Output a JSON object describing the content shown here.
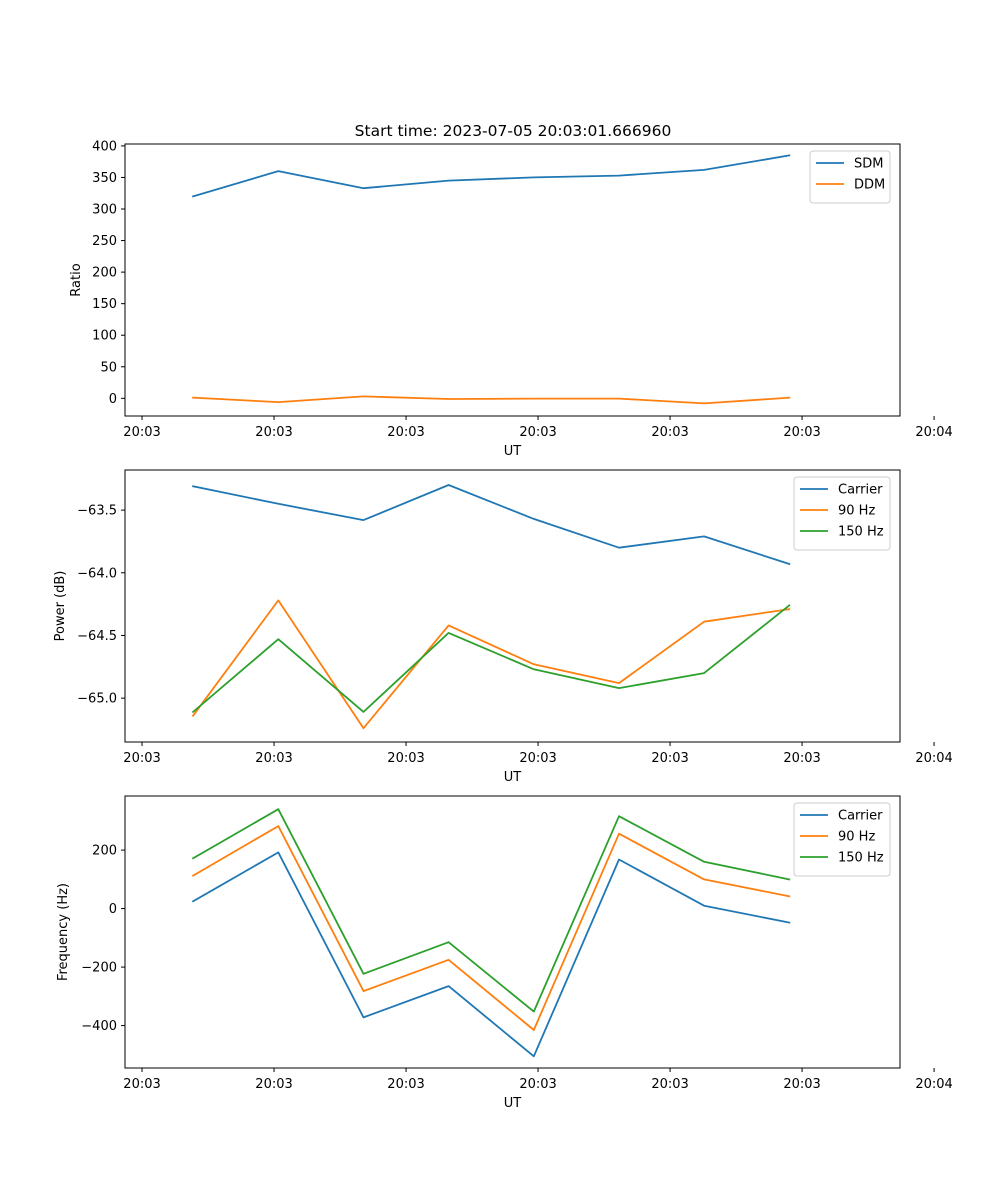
{
  "figure": {
    "title": "Start time: 2023-07-05 20:03:01.666960"
  },
  "colors": {
    "blue": "#1f77b4",
    "orange": "#ff7f0e",
    "green": "#2ca02c",
    "frame": "#000000"
  },
  "chart_data": [
    {
      "type": "line",
      "title": "Start time: 2023-07-05 20:03:01.666960",
      "xlabel": "UT",
      "ylabel": "Ratio",
      "x": [
        1,
        2,
        3,
        4,
        5,
        6,
        7,
        8
      ],
      "xlim": [
        0.2,
        9.3
      ],
      "x_ticks": [
        0.4,
        1.95,
        3.5,
        5.05,
        6.6,
        8.15,
        9.7
      ],
      "x_tick_labels": [
        "20:03",
        "20:03",
        "20:03",
        "20:03",
        "20:03",
        "20:03",
        "20:04"
      ],
      "ylim": [
        -28,
        403
      ],
      "y_ticks": [
        0,
        50,
        100,
        150,
        200,
        250,
        300,
        350,
        400
      ],
      "y_tick_labels": [
        "0",
        "50",
        "100",
        "150",
        "200",
        "250",
        "300",
        "350",
        "400"
      ],
      "legend_loc": "upper-right",
      "series": [
        {
          "name": "SDM",
          "color": "#1f77b4",
          "values": [
            320,
            360,
            333,
            345,
            350,
            353,
            362,
            385
          ]
        },
        {
          "name": "DDM",
          "color": "#ff7f0e",
          "values": [
            1,
            -6,
            3,
            -1,
            -0.5,
            -0.5,
            -8,
            1
          ]
        }
      ]
    },
    {
      "type": "line",
      "title": "",
      "xlabel": "UT",
      "ylabel": "Power (dB)",
      "x": [
        1,
        2,
        3,
        4,
        5,
        6,
        7,
        8
      ],
      "xlim": [
        0.2,
        9.3
      ],
      "x_ticks": [
        0.4,
        1.95,
        3.5,
        5.05,
        6.6,
        8.15,
        9.7
      ],
      "x_tick_labels": [
        "20:03",
        "20:03",
        "20:03",
        "20:03",
        "20:03",
        "20:03",
        "20:04"
      ],
      "ylim": [
        -65.35,
        -63.18
      ],
      "y_ticks": [
        -65.0,
        -64.5,
        -64.0,
        -63.5
      ],
      "y_tick_labels": [
        "−65.0",
        "−64.5",
        "−64.0",
        "−63.5"
      ],
      "legend_loc": "upper-right",
      "series": [
        {
          "name": "Carrier",
          "color": "#1f77b4",
          "values": [
            -63.31,
            -63.45,
            -63.58,
            -63.3,
            -63.57,
            -63.8,
            -63.71,
            -63.93
          ]
        },
        {
          "name": "90 Hz",
          "color": "#ff7f0e",
          "values": [
            -65.14,
            -64.22,
            -65.24,
            -64.42,
            -64.73,
            -64.88,
            -64.39,
            -64.29
          ]
        },
        {
          "name": "150 Hz",
          "color": "#2ca02c",
          "values": [
            -65.11,
            -64.53,
            -65.11,
            -64.48,
            -64.77,
            -64.92,
            -64.8,
            -64.26
          ]
        }
      ]
    },
    {
      "type": "line",
      "title": "",
      "xlabel": "UT",
      "ylabel": "Frequency (Hz)",
      "x": [
        1,
        2,
        3,
        4,
        5,
        6,
        7,
        8
      ],
      "xlim": [
        0.2,
        9.3
      ],
      "x_ticks": [
        0.4,
        1.95,
        3.5,
        5.05,
        6.6,
        8.15,
        9.7
      ],
      "x_tick_labels": [
        "20:03",
        "20:03",
        "20:03",
        "20:03",
        "20:03",
        "20:03",
        "20:04"
      ],
      "ylim": [
        -545,
        385
      ],
      "y_ticks": [
        -400,
        -200,
        0,
        200
      ],
      "y_tick_labels": [
        "−400",
        "−200",
        "0",
        "200"
      ],
      "legend_loc": "upper-right",
      "series": [
        {
          "name": "Carrier",
          "color": "#1f77b4",
          "values": [
            25,
            192,
            -372,
            -265,
            -505,
            168,
            10,
            -48
          ]
        },
        {
          "name": "90 Hz",
          "color": "#ff7f0e",
          "values": [
            113,
            282,
            -282,
            -175,
            -415,
            256,
            100,
            42
          ]
        },
        {
          "name": "150 Hz",
          "color": "#2ca02c",
          "values": [
            172,
            340,
            -223,
            -115,
            -352,
            316,
            160,
            100
          ]
        }
      ]
    }
  ]
}
